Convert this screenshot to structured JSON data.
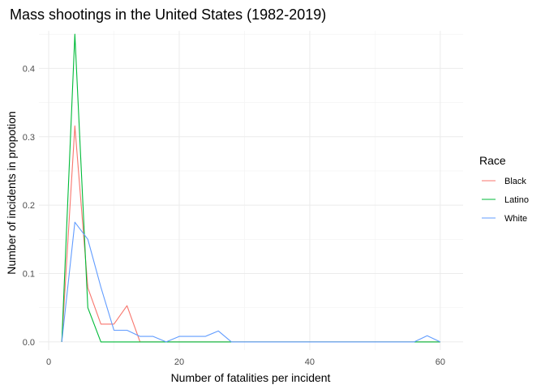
{
  "chart_data": {
    "type": "line",
    "title": "Mass shootings in the United States (1982-2019)",
    "xlabel": "Number of fatalities per incident",
    "ylabel": "Number of incidents in propotion",
    "xlim": [
      -1.5,
      63.5
    ],
    "ylim": [
      -0.012,
      0.455
    ],
    "x_ticks": [
      0,
      20,
      40,
      60
    ],
    "y_ticks": [
      0.0,
      0.1,
      0.2,
      0.3,
      0.4
    ],
    "grid": true,
    "legend": {
      "title": "Race",
      "position": "right"
    },
    "series": [
      {
        "name": "Black",
        "color": "#F8766D",
        "x": [
          2,
          4,
          6,
          8,
          10,
          12,
          14,
          60
        ],
        "y": [
          0.0,
          0.316,
          0.079,
          0.026,
          0.026,
          0.053,
          0.0,
          0.0
        ]
      },
      {
        "name": "Latino",
        "color": "#00BA38",
        "x": [
          2,
          4,
          6,
          8,
          60
        ],
        "y": [
          0.0,
          0.45,
          0.05,
          0.0,
          0.0
        ]
      },
      {
        "name": "White",
        "color": "#619CFF",
        "x": [
          2,
          4,
          6,
          8,
          10,
          12,
          14,
          16,
          18,
          20,
          22,
          24,
          26,
          28,
          56,
          58,
          60
        ],
        "y": [
          0.0,
          0.175,
          0.15,
          0.08,
          0.017,
          0.017,
          0.008,
          0.008,
          0.0,
          0.008,
          0.008,
          0.008,
          0.016,
          0.0,
          0.0,
          0.009,
          0.0
        ]
      }
    ]
  }
}
